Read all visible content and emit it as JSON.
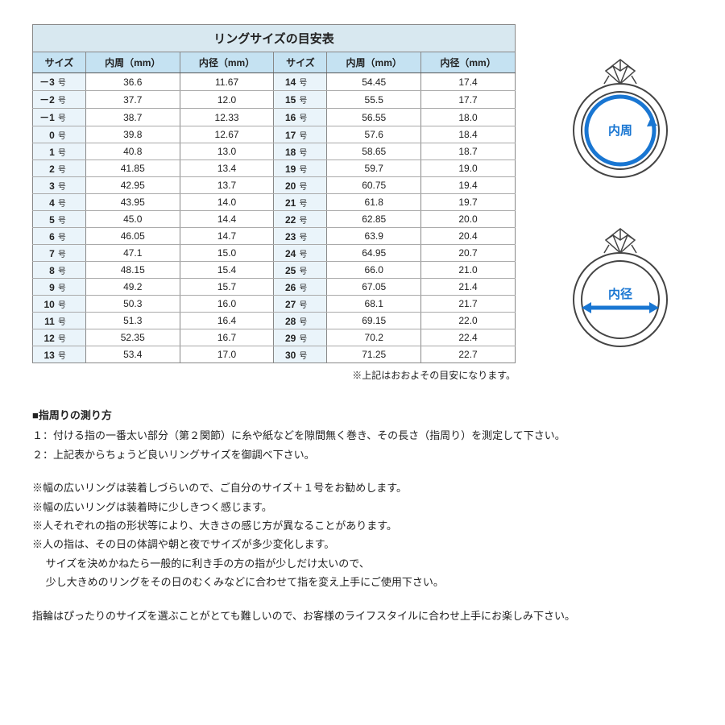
{
  "table": {
    "title": "リングサイズの目安表",
    "headers": [
      "サイズ",
      "内周（mm）",
      "内径（mm）"
    ],
    "left": [
      {
        "size": "－3",
        "circ": "36.6",
        "dia": "11.67"
      },
      {
        "size": "－2",
        "circ": "37.7",
        "dia": "12.0"
      },
      {
        "size": "－1",
        "circ": "38.7",
        "dia": "12.33"
      },
      {
        "size": "0",
        "circ": "39.8",
        "dia": "12.67"
      },
      {
        "size": "1",
        "circ": "40.8",
        "dia": "13.0"
      },
      {
        "size": "2",
        "circ": "41.85",
        "dia": "13.4"
      },
      {
        "size": "3",
        "circ": "42.95",
        "dia": "13.7"
      },
      {
        "size": "4",
        "circ": "43.95",
        "dia": "14.0"
      },
      {
        "size": "5",
        "circ": "45.0",
        "dia": "14.4"
      },
      {
        "size": "6",
        "circ": "46.05",
        "dia": "14.7"
      },
      {
        "size": "7",
        "circ": "47.1",
        "dia": "15.0"
      },
      {
        "size": "8",
        "circ": "48.15",
        "dia": "15.4"
      },
      {
        "size": "9",
        "circ": "49.2",
        "dia": "15.7"
      },
      {
        "size": "10",
        "circ": "50.3",
        "dia": "16.0"
      },
      {
        "size": "11",
        "circ": "51.3",
        "dia": "16.4"
      },
      {
        "size": "12",
        "circ": "52.35",
        "dia": "16.7"
      },
      {
        "size": "13",
        "circ": "53.4",
        "dia": "17.0"
      }
    ],
    "right": [
      {
        "size": "14",
        "circ": "54.45",
        "dia": "17.4"
      },
      {
        "size": "15",
        "circ": "55.5",
        "dia": "17.7"
      },
      {
        "size": "16",
        "circ": "56.55",
        "dia": "18.0"
      },
      {
        "size": "17",
        "circ": "57.6",
        "dia": "18.4"
      },
      {
        "size": "18",
        "circ": "58.65",
        "dia": "18.7"
      },
      {
        "size": "19",
        "circ": "59.7",
        "dia": "19.0"
      },
      {
        "size": "20",
        "circ": "60.75",
        "dia": "19.4"
      },
      {
        "size": "21",
        "circ": "61.8",
        "dia": "19.7"
      },
      {
        "size": "22",
        "circ": "62.85",
        "dia": "20.0"
      },
      {
        "size": "23",
        "circ": "63.9",
        "dia": "20.4"
      },
      {
        "size": "24",
        "circ": "64.95",
        "dia": "20.7"
      },
      {
        "size": "25",
        "circ": "66.0",
        "dia": "21.0"
      },
      {
        "size": "26",
        "circ": "67.05",
        "dia": "21.4"
      },
      {
        "size": "27",
        "circ": "68.1",
        "dia": "21.7"
      },
      {
        "size": "28",
        "circ": "69.15",
        "dia": "22.0"
      },
      {
        "size": "29",
        "circ": "70.2",
        "dia": "22.4"
      },
      {
        "size": "30",
        "circ": "71.25",
        "dia": "22.7"
      }
    ],
    "size_unit": "号"
  },
  "footnote": "※上記はおおよその目安になります。",
  "diagram": {
    "circumference_label": "内周",
    "diameter_label": "内径",
    "accent_color": "#1976d2",
    "outline_color": "#444444"
  },
  "instructions": {
    "heading": "■指周りの測り方",
    "steps": [
      "１：付ける指の一番太い部分（第２関節）に糸や紙などを隙間無く巻き、その長さ（指周り）を測定して下さい。",
      "２：上記表からちょうど良いリングサイズを御調べ下さい。"
    ],
    "notes": [
      "※幅の広いリングは装着しづらいので、ご自分のサイズ＋１号をお勧めします。",
      "※幅の広いリングは装着時に少しきつく感じます。",
      "※人それぞれの指の形状等により、大きさの感じ方が異なることがあります。",
      "※人の指は、その日の体調や朝と夜でサイズが多少変化します。",
      "　 サイズを決めかねたら一般的に利き手の方の指が少しだけ太いので、",
      "　 少し大きめのリングをその日のむくみなどに合わせて指を変え上手にご使用下さい。"
    ],
    "closing": "指輪はぴったりのサイズを選ぶことがとても難しいので、お客様のライフスタイルに合わせ上手にお楽しみ下さい。"
  }
}
